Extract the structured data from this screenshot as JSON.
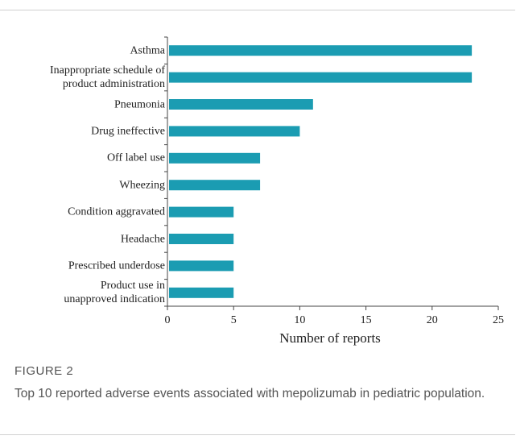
{
  "chart_data": {
    "type": "bar",
    "orientation": "horizontal",
    "categories": [
      "Asthma",
      "Inappropriate schedule of\nproduct administration",
      "Pneumonia",
      "Drug ineffective",
      "Off label use",
      "Wheezing",
      "Condition aggravated",
      "Headache",
      "Prescribed underdose",
      "Product use in\nunapproved indication"
    ],
    "values": [
      23,
      23,
      11,
      10,
      7,
      7,
      5,
      5,
      5,
      5
    ],
    "color": "#1b9cb2",
    "xlabel": "Number of reports",
    "xlim": [
      0,
      25
    ],
    "xticks": [
      0,
      5,
      10,
      15,
      20,
      25
    ]
  },
  "figure_label": "FIGURE 2",
  "caption": "Top 10 reported adverse events associated with mepolizumab in pediatric population."
}
